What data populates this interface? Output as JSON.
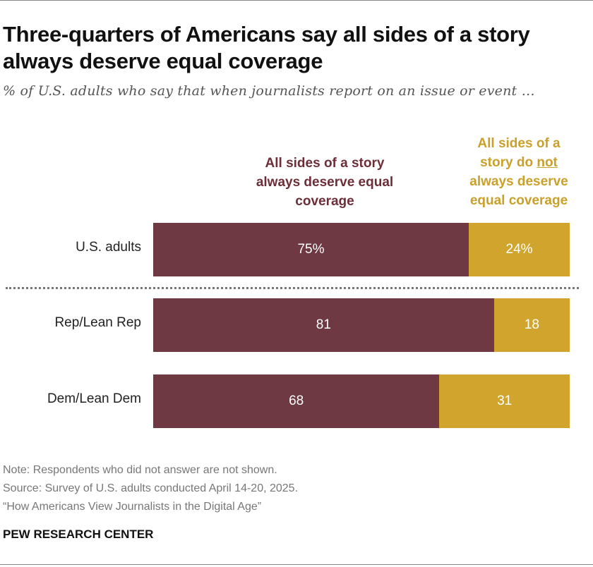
{
  "header": {
    "title": "Three-quarters of Americans say all sides of a story always deserve equal coverage",
    "subtitle": "% of U.S. adults who say that when journalists report on an issue or event …"
  },
  "legend": {
    "maroon_label": "All sides of a story always deserve equal coverage",
    "gold_line1": "All sides of a",
    "gold_line2_pre": "story do ",
    "gold_line2_emph": "not",
    "gold_line3": "always deserve",
    "gold_line4": "equal coverage"
  },
  "chart_data": {
    "type": "bar",
    "orientation": "horizontal",
    "stacked": true,
    "title": "Three-quarters of Americans say all sides of a story always deserve equal coverage",
    "categories": [
      "U.S. adults",
      "Rep/Lean Rep",
      "Dem/Lean Dem"
    ],
    "series": [
      {
        "name": "All sides of a story always deserve equal coverage",
        "values": [
          75,
          81,
          68
        ],
        "labels": [
          "75%",
          "81",
          "68"
        ],
        "color": "#6f3943"
      },
      {
        "name": "All sides of a story do not always deserve equal coverage",
        "values": [
          24,
          18,
          31
        ],
        "labels": [
          "24%",
          "18",
          "31"
        ],
        "color": "#d1a42e"
      }
    ],
    "xlim": [
      0,
      100
    ],
    "xlabel": "",
    "ylabel": "",
    "grid": false
  },
  "notes": {
    "note": "Note: Respondents who did not answer are not shown.",
    "source": "Source: Survey of U.S. adults conducted April 14-20, 2025.",
    "report": "“How Americans View Journalists in the Digital Age”"
  },
  "brand": "PEW RESEARCH CENTER"
}
